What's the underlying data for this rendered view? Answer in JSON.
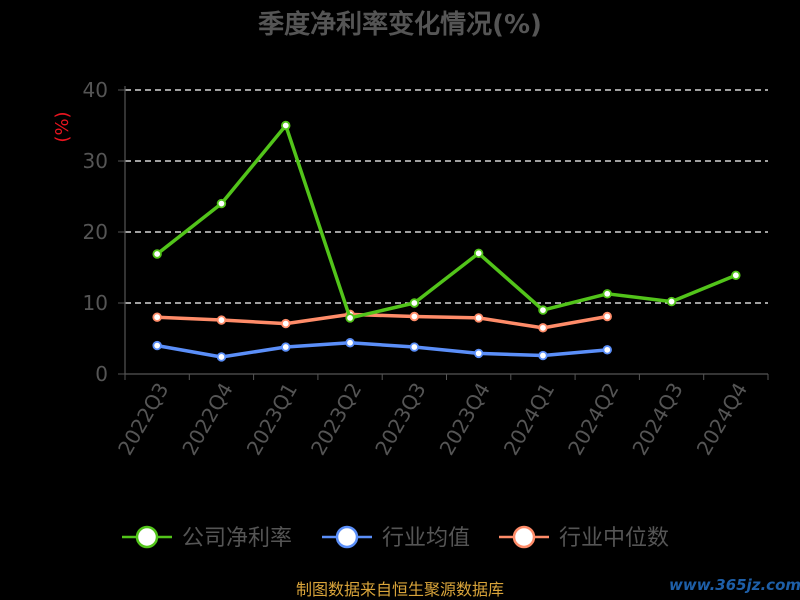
{
  "chart_data": {
    "type": "line",
    "title": "季度净利率变化情况(%)",
    "ylabel": "(%)",
    "xlabel": "",
    "ylim": [
      0,
      40
    ],
    "yticks": [
      0,
      10,
      20,
      30,
      40
    ],
    "grid": true,
    "legend_position": "bottom",
    "categories": [
      "2022Q3",
      "2022Q4",
      "2023Q1",
      "2023Q2",
      "2023Q3",
      "2023Q4",
      "2024Q1",
      "2024Q2",
      "2024Q3",
      "2024Q4"
    ],
    "series": [
      {
        "name": "公司净利率",
        "color": "#52c41a",
        "values": [
          16.9,
          24.0,
          35.0,
          7.9,
          10.0,
          17.0,
          9.0,
          11.3,
          10.2,
          13.9
        ]
      },
      {
        "name": "行业均值",
        "color": "#5b8ff9",
        "values": [
          4.0,
          2.4,
          3.8,
          4.4,
          3.8,
          2.9,
          2.6,
          3.4,
          null,
          null
        ]
      },
      {
        "name": "行业中位数",
        "color": "#ff8c69",
        "values": [
          8.0,
          7.6,
          7.1,
          8.4,
          8.1,
          7.9,
          6.5,
          8.1,
          null,
          null
        ]
      }
    ]
  },
  "footer": {
    "source": "制图数据来自恒生聚源数据库",
    "watermark": "www.365jz.com"
  }
}
